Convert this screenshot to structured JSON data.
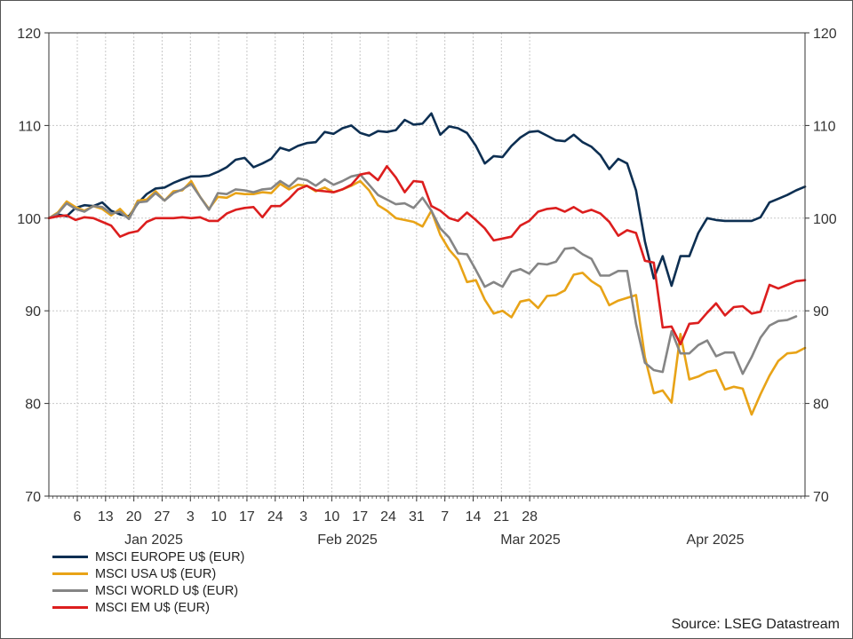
{
  "chart_data": {
    "type": "line",
    "y_ticks": [
      70,
      80,
      90,
      100,
      110,
      120
    ],
    "ylim": [
      70,
      120
    ],
    "x_tick_labels": [
      "6",
      "13",
      "20",
      "27",
      "3",
      "10",
      "17",
      "24",
      "3",
      "10",
      "17",
      "24",
      "31",
      "7",
      "14",
      "21",
      "28"
    ],
    "month_labels": [
      "Jan 2025",
      "Feb 2025",
      "Mar 2025",
      "Apr 2025"
    ],
    "grid": true,
    "legend_position": "bottom-left",
    "series": [
      {
        "name": "MSCI EUROPE U$ (EUR)",
        "color": "#0d2f52",
        "values": [
          100.0,
          100.4,
          100.2,
          101.1,
          101.4,
          101.3,
          101.7,
          100.8,
          100.4,
          100.2,
          101.6,
          102.6,
          103.2,
          103.3,
          103.8,
          104.2,
          104.5,
          104.5,
          104.6,
          105.0,
          105.5,
          106.3,
          106.5,
          105.5,
          105.9,
          106.4,
          107.6,
          107.3,
          107.8,
          108.1,
          108.2,
          109.3,
          109.1,
          109.7,
          110.0,
          109.2,
          108.9,
          109.4,
          109.3,
          109.5,
          110.6,
          110.1,
          110.2,
          111.3,
          109.0,
          109.9,
          109.7,
          109.2,
          107.8,
          105.9,
          106.7,
          106.6,
          107.8,
          108.7,
          109.3,
          109.4,
          108.9,
          108.4,
          108.3,
          109.0,
          108.2,
          107.7,
          106.8,
          105.3,
          106.4,
          105.9,
          103.0,
          97.5,
          93.5,
          95.9,
          92.7,
          95.9,
          95.9,
          98.4,
          100.0,
          99.8,
          99.7,
          99.7,
          99.7,
          99.7,
          100.1,
          101.7,
          102.1,
          102.5,
          103.0,
          103.4
        ]
      },
      {
        "name": "MSCI USA U$ (EUR)",
        "color": "#e8a317",
        "values": [
          100.0,
          100.6,
          101.8,
          101.2,
          100.8,
          101.3,
          101.0,
          100.3,
          101.0,
          100.0,
          101.9,
          102.0,
          102.9,
          101.9,
          102.9,
          103.0,
          104.0,
          102.3,
          101.0,
          102.3,
          102.2,
          102.7,
          102.6,
          102.6,
          102.8,
          102.7,
          103.7,
          103.1,
          103.6,
          103.5,
          102.9,
          103.3,
          102.8,
          103.1,
          103.5,
          104.0,
          103.0,
          101.4,
          100.8,
          100.0,
          99.8,
          99.6,
          99.1,
          100.8,
          98.2,
          96.6,
          95.5,
          93.1,
          93.3,
          91.2,
          89.7,
          90.0,
          89.3,
          91.0,
          91.2,
          90.3,
          91.6,
          91.7,
          92.2,
          93.9,
          94.1,
          93.2,
          92.6,
          90.6,
          91.1,
          91.4,
          91.7,
          85.0,
          81.1,
          81.4,
          80.1,
          87.5,
          82.6,
          82.9,
          83.4,
          83.6,
          81.5,
          81.8,
          81.6,
          78.8,
          81.0,
          83.0,
          84.6,
          85.4,
          85.5,
          86.0
        ]
      },
      {
        "name": "MSCI WORLD U$ (EUR)",
        "color": "#858585",
        "values": [
          100.0,
          100.5,
          101.6,
          101.0,
          100.7,
          101.3,
          101.2,
          100.5,
          100.7,
          99.9,
          101.7,
          101.8,
          102.7,
          101.9,
          102.7,
          103.1,
          103.7,
          102.3,
          100.9,
          102.7,
          102.6,
          103.1,
          103.0,
          102.8,
          103.1,
          103.2,
          104.0,
          103.4,
          104.3,
          104.1,
          103.5,
          104.2,
          103.6,
          104.0,
          104.5,
          104.7,
          103.6,
          102.5,
          102.0,
          101.5,
          101.6,
          101.1,
          102.2,
          100.8,
          98.9,
          97.9,
          96.2,
          96.1,
          94.4,
          92.6,
          93.1,
          92.6,
          94.2,
          94.5,
          94.0,
          95.1,
          95.0,
          95.3,
          96.7,
          96.8,
          96.1,
          95.6,
          93.8,
          93.8,
          94.3,
          94.3,
          88.6,
          84.4,
          83.6,
          83.4,
          87.8,
          85.4,
          85.4,
          86.3,
          86.8,
          85.1,
          85.5,
          85.5,
          83.2,
          85.0,
          87.1,
          88.4,
          88.9,
          89.0,
          89.4
        ]
      },
      {
        "name": "MSCI EM U$ (EUR)",
        "color": "#dc1e1e",
        "values": [
          100.0,
          100.2,
          100.3,
          99.8,
          100.1,
          100.0,
          99.6,
          99.2,
          98.0,
          98.4,
          98.6,
          99.6,
          100.0,
          100.0,
          100.0,
          100.1,
          100.0,
          100.1,
          99.7,
          99.7,
          100.5,
          100.9,
          101.1,
          101.2,
          100.1,
          101.3,
          101.3,
          102.1,
          103.1,
          103.5,
          103.0,
          102.9,
          102.8,
          103.1,
          103.6,
          104.7,
          104.9,
          104.1,
          105.6,
          104.4,
          102.8,
          104.0,
          103.9,
          101.3,
          100.8,
          100.0,
          99.7,
          100.6,
          99.8,
          98.9,
          97.6,
          97.8,
          98.0,
          99.2,
          99.7,
          100.7,
          101.0,
          101.1,
          100.7,
          101.2,
          100.6,
          100.9,
          100.5,
          99.6,
          98.1,
          98.7,
          98.4,
          95.4,
          95.2,
          88.2,
          88.3,
          86.4,
          88.6,
          88.7,
          89.8,
          90.8,
          89.5,
          90.4,
          90.5,
          89.7,
          89.9,
          92.8,
          92.4,
          92.8,
          93.2,
          93.3
        ]
      }
    ]
  },
  "source": "Source: LSEG Datastream"
}
